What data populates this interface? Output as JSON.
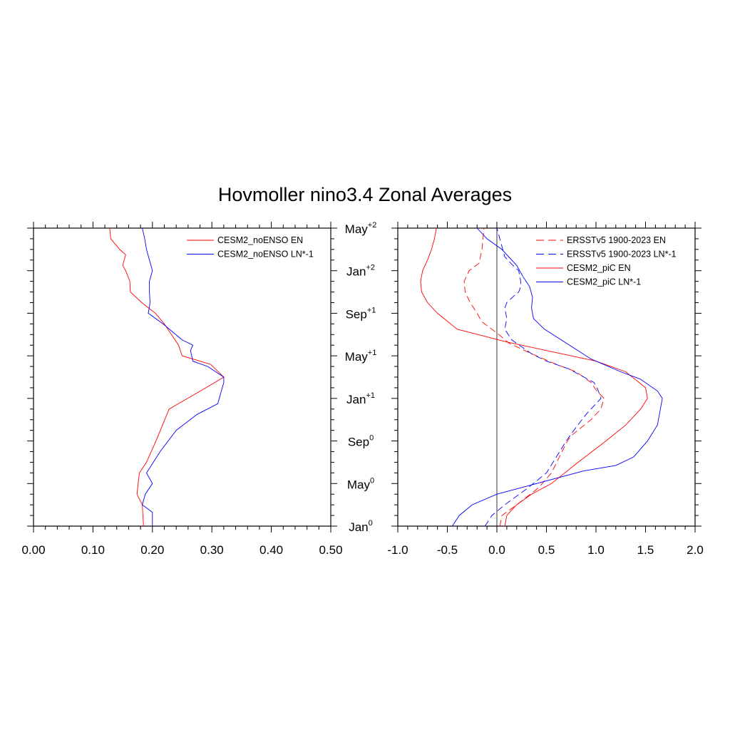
{
  "title": "Hovmoller nino3.4 Zonal Averages",
  "chart_data": [
    {
      "type": "line",
      "xlim": [
        0.0,
        0.5
      ],
      "x_ticks": [
        "0.00",
        "0.10",
        "0.20",
        "0.30",
        "0.40",
        "0.50"
      ],
      "y_axis_months_from_jan0": [
        0,
        28
      ],
      "series": [
        {
          "name": "CESM2_noENSO EN",
          "color": "#ff0000",
          "dash": "solid",
          "points": [
            [
              0.185,
              0
            ],
            [
              0.183,
              2
            ],
            [
              0.174,
              3
            ],
            [
              0.178,
              5
            ],
            [
              0.19,
              6
            ],
            [
              0.206,
              8
            ],
            [
              0.228,
              11
            ],
            [
              0.29,
              13
            ],
            [
              0.32,
              14
            ],
            [
              0.298,
              15.2
            ],
            [
              0.25,
              16
            ],
            [
              0.244,
              17
            ],
            [
              0.22,
              19
            ],
            [
              0.205,
              20
            ],
            [
              0.182,
              21
            ],
            [
              0.163,
              22
            ],
            [
              0.162,
              23
            ],
            [
              0.155,
              24
            ],
            [
              0.15,
              24.5
            ],
            [
              0.155,
              25.5
            ],
            [
              0.145,
              26
            ],
            [
              0.13,
              27
            ],
            [
              0.128,
              28
            ]
          ]
        },
        {
          "name": "CESM2_noENSO LN*-1",
          "color": "#0000ff",
          "dash": "solid",
          "points": [
            [
              0.2,
              0
            ],
            [
              0.2,
              1.3
            ],
            [
              0.183,
              2
            ],
            [
              0.188,
              3
            ],
            [
              0.2,
              4
            ],
            [
              0.19,
              5
            ],
            [
              0.213,
              7
            ],
            [
              0.24,
              9
            ],
            [
              0.275,
              10.5
            ],
            [
              0.31,
              11.5
            ],
            [
              0.32,
              13.5
            ],
            [
              0.32,
              14
            ],
            [
              0.293,
              15
            ],
            [
              0.268,
              15.5
            ],
            [
              0.264,
              16.5
            ],
            [
              0.268,
              17
            ],
            [
              0.25,
              17.5
            ],
            [
              0.218,
              19
            ],
            [
              0.193,
              20
            ],
            [
              0.196,
              21
            ],
            [
              0.195,
              22
            ],
            [
              0.195,
              23
            ],
            [
              0.2,
              24
            ],
            [
              0.195,
              25
            ],
            [
              0.19,
              26
            ],
            [
              0.187,
              27
            ],
            [
              0.183,
              28
            ]
          ]
        }
      ]
    },
    {
      "type": "line",
      "xlim": [
        -1.0,
        2.0
      ],
      "x_ticks": [
        "-1.0",
        "-0.5",
        "0.0",
        "0.5",
        "1.0",
        "1.5",
        "2.0"
      ],
      "y_ticks": [
        {
          "month": "Jan",
          "sup": "0"
        },
        {
          "month": "May",
          "sup": "0"
        },
        {
          "month": "Sep",
          "sup": "0"
        },
        {
          "month": "Jan",
          "sup": "+1"
        },
        {
          "month": "May",
          "sup": "+1"
        },
        {
          "month": "Sep",
          "sup": "+1"
        },
        {
          "month": "Jan",
          "sup": "+2"
        },
        {
          "month": "May",
          "sup": "+2"
        }
      ],
      "zero_line": true,
      "series": [
        {
          "name": "ERSSTv5 1900-2023 EN",
          "color": "#ff0000",
          "dash": "dashed",
          "points": [
            [
              0.03,
              0
            ],
            [
              0.05,
              1
            ],
            [
              0.2,
              2
            ],
            [
              0.42,
              3.6
            ],
            [
              0.55,
              5
            ],
            [
              0.7,
              7.8
            ],
            [
              0.75,
              8.5
            ],
            [
              0.95,
              10
            ],
            [
              1.05,
              11
            ],
            [
              1.08,
              12
            ],
            [
              1.0,
              12.8
            ],
            [
              0.95,
              13.5
            ],
            [
              0.8,
              14.5
            ],
            [
              0.6,
              15.2
            ],
            [
              0.35,
              16.2
            ],
            [
              0.12,
              17.2
            ],
            [
              0.02,
              18
            ],
            [
              -0.05,
              18.5
            ],
            [
              -0.15,
              19.2
            ],
            [
              -0.2,
              20
            ],
            [
              -0.27,
              21
            ],
            [
              -0.32,
              22
            ],
            [
              -0.33,
              23
            ],
            [
              -0.28,
              24
            ],
            [
              -0.18,
              24.7
            ],
            [
              -0.15,
              26
            ],
            [
              -0.13,
              28
            ]
          ]
        },
        {
          "name": "ERSSTv5 1900-2023 LN*-1",
          "color": "#0000ff",
          "dash": "dashed",
          "points": [
            [
              -0.12,
              0
            ],
            [
              -0.05,
              1
            ],
            [
              0.08,
              2
            ],
            [
              0.3,
              3.5
            ],
            [
              0.5,
              5
            ],
            [
              0.7,
              8
            ],
            [
              0.8,
              9.3
            ],
            [
              0.9,
              10.5
            ],
            [
              1.0,
              11.5
            ],
            [
              1.05,
              12
            ],
            [
              1.02,
              12.8
            ],
            [
              0.98,
              13.5
            ],
            [
              0.72,
              14.8
            ],
            [
              0.5,
              15.5
            ],
            [
              0.35,
              16.2
            ],
            [
              0.15,
              17.5
            ],
            [
              0.08,
              18.5
            ],
            [
              0.1,
              19.5
            ],
            [
              0.08,
              20.5
            ],
            [
              0.1,
              21
            ],
            [
              0.18,
              21.7
            ],
            [
              0.22,
              22
            ],
            [
              0.24,
              22.5
            ],
            [
              0.24,
              23
            ],
            [
              0.22,
              24
            ],
            [
              0.15,
              24.6
            ],
            [
              0.08,
              25.3
            ],
            [
              0.0,
              28
            ]
          ]
        },
        {
          "name": "CESM2_piC EN",
          "color": "#ff0000",
          "dash": "solid",
          "points": [
            [
              0.08,
              0
            ],
            [
              0.1,
              1
            ],
            [
              0.2,
              2
            ],
            [
              0.35,
              3
            ],
            [
              0.55,
              4
            ],
            [
              0.82,
              6
            ],
            [
              1.1,
              8
            ],
            [
              1.3,
              9.5
            ],
            [
              1.45,
              11
            ],
            [
              1.52,
              12
            ],
            [
              1.5,
              13
            ],
            [
              1.3,
              14.5
            ],
            [
              1.0,
              15.5
            ],
            [
              0.5,
              16.5
            ],
            [
              0.1,
              17.3
            ],
            [
              -0.4,
              18.5
            ],
            [
              -0.6,
              20
            ],
            [
              -0.7,
              21
            ],
            [
              -0.76,
              22
            ],
            [
              -0.77,
              23
            ],
            [
              -0.75,
              24
            ],
            [
              -0.7,
              25
            ],
            [
              -0.66,
              26
            ],
            [
              -0.63,
              27
            ],
            [
              -0.61,
              28
            ]
          ]
        },
        {
          "name": "CESM2_piC LN*-1",
          "color": "#0000ff",
          "dash": "solid",
          "points": [
            [
              -0.45,
              0
            ],
            [
              -0.38,
              1
            ],
            [
              -0.25,
              2
            ],
            [
              0.0,
              3
            ],
            [
              0.4,
              4
            ],
            [
              0.88,
              5.2
            ],
            [
              1.2,
              5.7
            ],
            [
              1.38,
              6.5
            ],
            [
              1.52,
              8
            ],
            [
              1.62,
              9.5
            ],
            [
              1.67,
              12
            ],
            [
              1.62,
              12.7
            ],
            [
              1.45,
              13.8
            ],
            [
              1.25,
              14.5
            ],
            [
              0.95,
              15.7
            ],
            [
              0.7,
              17.2
            ],
            [
              0.48,
              18.5
            ],
            [
              0.37,
              19.5
            ],
            [
              0.35,
              20.5
            ],
            [
              0.36,
              21.5
            ],
            [
              0.33,
              22.5
            ],
            [
              0.26,
              23.5
            ],
            [
              0.2,
              24.5
            ],
            [
              0.05,
              26
            ],
            [
              -0.1,
              27
            ],
            [
              -0.2,
              28
            ]
          ]
        }
      ]
    }
  ]
}
